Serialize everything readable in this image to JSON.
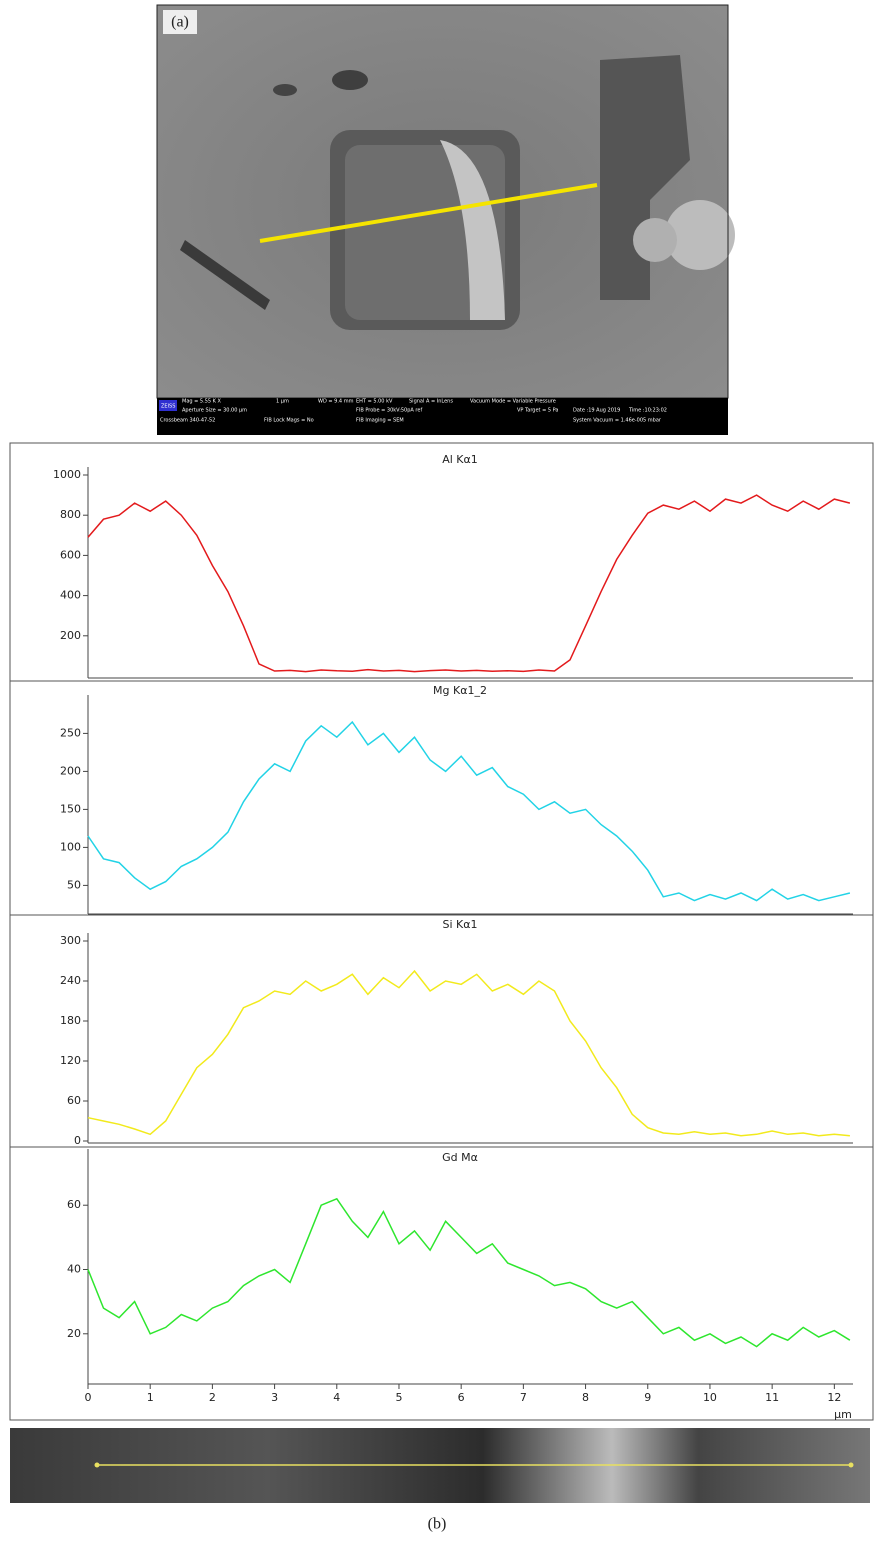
{
  "panel_a_label": "(a)",
  "panel_b_label": "(b)",
  "sem_info": [
    "ZEISS",
    "Mag = 5.55 K X",
    "1 µm",
    "WD = 9.4 mm",
    "EHT = 5.00 kV",
    "Signal A = InLens",
    "Vacuum Mode = Variable Pressure",
    "Aperture Size = 30.00 µm",
    "FIB Probe = 30kV:50pA ref",
    "VP Target = 5 Pa",
    "Date :19 Aug 2019",
    "Time :10:23:02",
    "Crossbeam 340-47-52",
    "FIB Lock Mags = No",
    "FIB Imaging = SEM",
    "System Vacuum = 1.46e-005 mbar"
  ],
  "chart_data": [
    {
      "type": "line",
      "title": "Al Kα1",
      "color": "#e31a1c",
      "xlim": [
        0,
        12.3
      ],
      "ylim": [
        0,
        1000
      ],
      "yticks": [
        200,
        400,
        600,
        800,
        1000
      ],
      "x": [
        0,
        0.25,
        0.5,
        0.75,
        1,
        1.25,
        1.5,
        1.75,
        2,
        2.25,
        2.5,
        2.75,
        3,
        3.25,
        3.5,
        3.75,
        4,
        4.25,
        4.5,
        4.75,
        5,
        5.25,
        5.5,
        5.75,
        6,
        6.25,
        6.5,
        6.75,
        7,
        7.25,
        7.5,
        7.75,
        8,
        8.25,
        8.5,
        8.75,
        9,
        9.25,
        9.5,
        9.75,
        10,
        10.25,
        10.5,
        10.75,
        11,
        11.25,
        11.5,
        11.75,
        12,
        12.25
      ],
      "values": [
        690,
        780,
        800,
        860,
        820,
        870,
        800,
        700,
        550,
        420,
        250,
        60,
        25,
        28,
        22,
        30,
        26,
        24,
        32,
        25,
        28,
        22,
        27,
        30,
        25,
        28,
        24,
        26,
        23,
        30,
        25,
        80,
        250,
        420,
        580,
        700,
        810,
        850,
        830,
        870,
        820,
        880,
        860,
        900,
        850,
        820,
        870,
        830,
        880,
        860
      ]
    },
    {
      "type": "line",
      "title": "Mg Kα1_2",
      "color": "#22d3e6",
      "xlim": [
        0,
        12.3
      ],
      "ylim": [
        15,
        290
      ],
      "yticks": [
        50,
        100,
        150,
        200,
        250
      ],
      "x": [
        0,
        0.25,
        0.5,
        0.75,
        1,
        1.25,
        1.5,
        1.75,
        2,
        2.25,
        2.5,
        2.75,
        3,
        3.25,
        3.5,
        3.75,
        4,
        4.25,
        4.5,
        4.75,
        5,
        5.25,
        5.5,
        5.75,
        6,
        6.25,
        6.5,
        6.75,
        7,
        7.25,
        7.5,
        7.75,
        8,
        8.25,
        8.5,
        8.75,
        9,
        9.25,
        9.5,
        9.75,
        10,
        10.25,
        10.5,
        10.75,
        11,
        11.25,
        11.5,
        11.75,
        12,
        12.25
      ],
      "values": [
        115,
        85,
        80,
        60,
        45,
        55,
        75,
        85,
        100,
        120,
        160,
        190,
        210,
        200,
        240,
        260,
        245,
        265,
        235,
        250,
        225,
        245,
        215,
        200,
        220,
        195,
        205,
        180,
        170,
        150,
        160,
        145,
        150,
        130,
        115,
        95,
        70,
        35,
        40,
        30,
        38,
        32,
        40,
        30,
        45,
        32,
        38,
        30,
        35,
        40
      ]
    },
    {
      "type": "line",
      "title": "Si Kα1",
      "color": "#f2ea1c",
      "xlim": [
        0,
        12.3
      ],
      "ylim": [
        0,
        300
      ],
      "yticks": [
        0,
        60,
        120,
        180,
        240,
        300
      ],
      "x": [
        0,
        0.25,
        0.5,
        0.75,
        1,
        1.25,
        1.5,
        1.75,
        2,
        2.25,
        2.5,
        2.75,
        3,
        3.25,
        3.5,
        3.75,
        4,
        4.25,
        4.5,
        4.75,
        5,
        5.25,
        5.5,
        5.75,
        6,
        6.25,
        6.5,
        6.75,
        7,
        7.25,
        7.5,
        7.75,
        8,
        8.25,
        8.5,
        8.75,
        9,
        9.25,
        9.5,
        9.75,
        10,
        10.25,
        10.5,
        10.75,
        11,
        11.25,
        11.5,
        11.75,
        12,
        12.25
      ],
      "values": [
        35,
        30,
        25,
        18,
        10,
        30,
        70,
        110,
        130,
        160,
        200,
        210,
        225,
        220,
        240,
        225,
        235,
        250,
        220,
        245,
        230,
        255,
        225,
        240,
        235,
        250,
        225,
        235,
        220,
        240,
        225,
        180,
        150,
        110,
        80,
        40,
        20,
        12,
        10,
        14,
        10,
        12,
        8,
        10,
        15,
        10,
        12,
        8,
        10,
        8
      ]
    },
    {
      "type": "line",
      "title": "Gd Mα",
      "color": "#2ee62e",
      "xlim": [
        0,
        12.3
      ],
      "ylim": [
        5,
        75
      ],
      "yticks": [
        20,
        40,
        60
      ],
      "xticks": [
        0,
        1,
        2,
        3,
        4,
        5,
        6,
        7,
        8,
        9,
        10,
        11,
        12
      ],
      "xlabel": "µm",
      "x": [
        0,
        0.25,
        0.5,
        0.75,
        1,
        1.25,
        1.5,
        1.75,
        2,
        2.25,
        2.5,
        2.75,
        3,
        3.25,
        3.5,
        3.75,
        4,
        4.25,
        4.5,
        4.75,
        5,
        5.25,
        5.5,
        5.75,
        6,
        6.25,
        6.5,
        6.75,
        7,
        7.25,
        7.5,
        7.75,
        8,
        8.25,
        8.5,
        8.75,
        9,
        9.25,
        9.5,
        9.75,
        10,
        10.25,
        10.5,
        10.75,
        11,
        11.25,
        11.5,
        11.75,
        12,
        12.25
      ],
      "values": [
        40,
        28,
        25,
        30,
        20,
        22,
        26,
        24,
        28,
        30,
        35,
        38,
        40,
        36,
        48,
        60,
        62,
        55,
        50,
        58,
        48,
        52,
        46,
        55,
        50,
        45,
        48,
        42,
        40,
        38,
        35,
        36,
        34,
        30,
        28,
        30,
        25,
        20,
        22,
        18,
        20,
        17,
        19,
        16,
        20,
        18,
        22,
        19,
        21,
        18
      ]
    }
  ]
}
